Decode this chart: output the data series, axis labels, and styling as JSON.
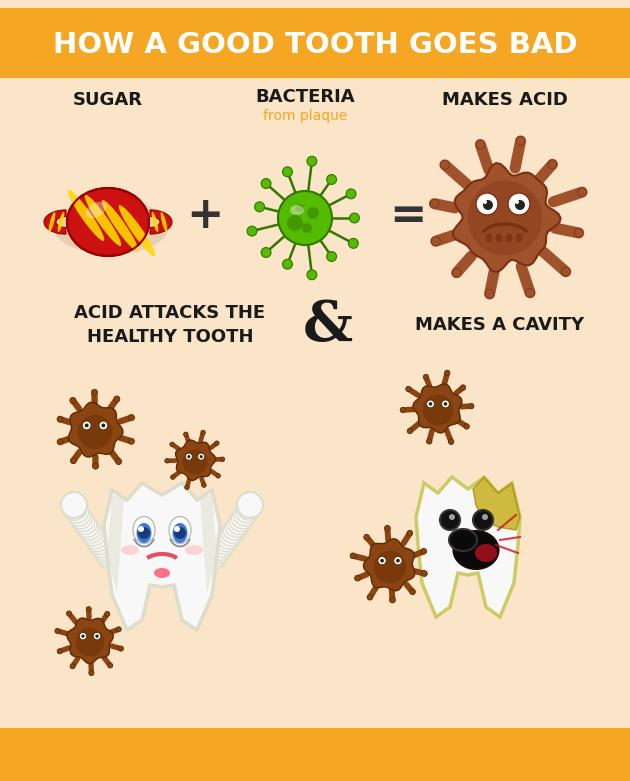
{
  "title": "HOW A GOOD TOOTH GOES BAD",
  "title_bg_color": "#F5A623",
  "bg_color": "#FAE5C8",
  "title_text_color": "#FFFFFF",
  "orange_bar_color": "#F5A623",
  "label_sugar": "SUGAR",
  "label_bacteria": "BACTERIA",
  "label_bacteria_sub": "from plaque",
  "label_makes_acid": "MAKES ACID",
  "label_acid_attacks": "ACID ATTACKS THE\nHEALTHY TOOTH",
  "label_makes_cavity": "MAKES A CAVITY",
  "label_and": "&",
  "plus_sign": "+",
  "equals_sign": "=",
  "candy_red": "#CC1111",
  "candy_dark_red": "#990000",
  "candy_yellow": "#FFD700",
  "bacteria_green": "#55BB00",
  "bacteria_dark_green": "#337700",
  "acid_brown": "#A0522D",
  "acid_dark_brown": "#7B3010",
  "germ_brown": "#8B4513",
  "germ_dark": "#5C2A00",
  "tooth_white": "#F8F8F8",
  "tooth_outline_color": "#DDDDCC",
  "tooth_cavity_outline": "#CCCC66"
}
